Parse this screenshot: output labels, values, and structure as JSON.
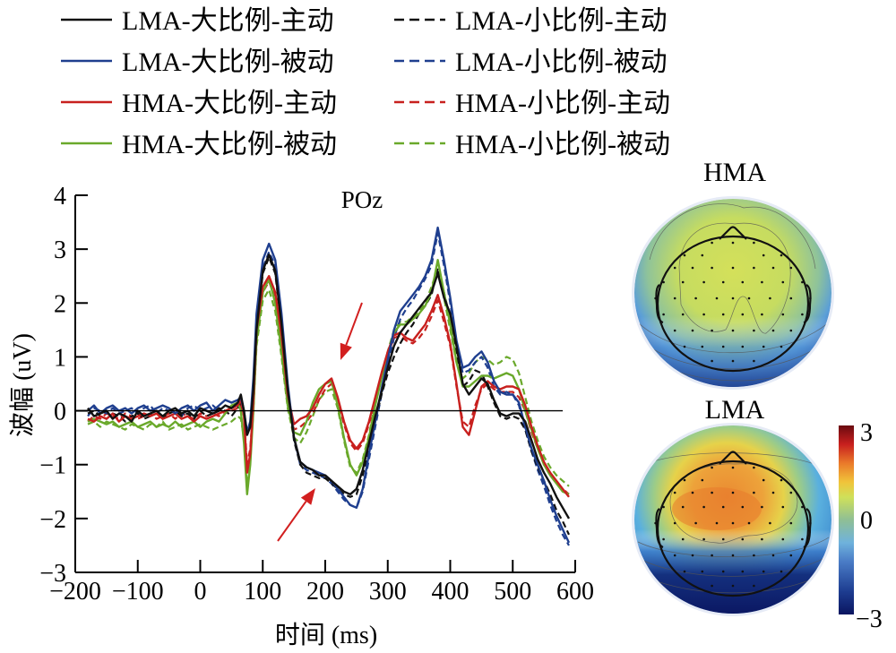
{
  "chart_data": {
    "type": "line",
    "title": "POz",
    "xlabel": "时间 (ms)",
    "ylabel": "波幅 (uV)",
    "xlim": [
      -200,
      600
    ],
    "ylim": [
      -3,
      4
    ],
    "xticks": [
      -200,
      -100,
      0,
      100,
      200,
      300,
      400,
      500,
      600
    ],
    "yticks": [
      -3,
      -2,
      -1,
      0,
      1,
      2,
      3,
      4
    ],
    "xtick_labels": [
      "−200",
      "−100",
      "0",
      "100",
      "200",
      "300",
      "400",
      "500",
      "600"
    ],
    "ytick_labels": [
      "−3",
      "−2",
      "−1",
      "0",
      "1",
      "2",
      "3",
      "4"
    ],
    "zero_line": true,
    "grid": false,
    "legend_position": "top",
    "annotations": [
      {
        "type": "arrow",
        "color": "#d21f1f",
        "points_to": {
          "x": 205,
          "y": 1.1
        },
        "note": "HMA positive deflection"
      },
      {
        "type": "arrow",
        "color": "#d21f1f",
        "points_to": {
          "x": 190,
          "y": -1.1
        },
        "note": "LMA negative deflection"
      }
    ],
    "x": [
      -180,
      -170,
      -160,
      -150,
      -140,
      -130,
      -120,
      -110,
      -100,
      -90,
      -80,
      -70,
      -60,
      -50,
      -40,
      -30,
      -20,
      -10,
      0,
      10,
      20,
      30,
      40,
      50,
      60,
      65,
      70,
      75,
      80,
      85,
      90,
      100,
      110,
      120,
      130,
      140,
      150,
      160,
      170,
      180,
      190,
      200,
      210,
      220,
      230,
      240,
      250,
      260,
      270,
      280,
      290,
      300,
      310,
      320,
      330,
      340,
      350,
      360,
      370,
      380,
      390,
      400,
      410,
      420,
      430,
      440,
      450,
      460,
      470,
      480,
      490,
      500,
      510,
      520,
      530,
      540,
      550,
      560,
      570,
      580,
      590
    ],
    "series": [
      {
        "name": "LMA-大比例-主动",
        "color": "#111111",
        "dash": "solid",
        "values": [
          0.05,
          -0.1,
          -0.05,
          0.0,
          -0.15,
          -0.05,
          -0.1,
          -0.2,
          0.0,
          -0.1,
          -0.05,
          0.0,
          -0.1,
          0.0,
          0.05,
          -0.05,
          0.0,
          -0.1,
          0.05,
          0.0,
          -0.05,
          0.0,
          0.1,
          0.05,
          0.15,
          0.3,
          0.0,
          -0.45,
          -0.3,
          0.4,
          1.5,
          2.6,
          2.9,
          2.6,
          1.6,
          0.4,
          -0.5,
          -0.95,
          -1.05,
          -1.1,
          -1.2,
          -1.2,
          -1.3,
          -1.4,
          -1.5,
          -1.55,
          -1.45,
          -1.1,
          -0.6,
          -0.1,
          0.35,
          0.8,
          1.2,
          1.45,
          1.6,
          1.75,
          1.9,
          2.05,
          2.2,
          2.55,
          2.1,
          1.8,
          1.2,
          0.5,
          0.3,
          0.45,
          0.6,
          0.5,
          0.2,
          -0.05,
          -0.1,
          -0.05,
          -0.05,
          -0.2,
          -0.55,
          -0.9,
          -1.15,
          -1.35,
          -1.6,
          -1.8,
          -2.0
        ]
      },
      {
        "name": "LMA-大比例-被动",
        "color": "#1f3f8f",
        "dash": "solid",
        "values": [
          0.0,
          0.1,
          -0.05,
          0.05,
          0.1,
          0.0,
          0.05,
          -0.05,
          0.05,
          0.1,
          0.0,
          0.05,
          0.1,
          0.05,
          -0.05,
          0.05,
          0.1,
          0.0,
          0.1,
          0.15,
          0.0,
          0.1,
          0.2,
          0.15,
          0.2,
          0.25,
          0.0,
          -0.4,
          -0.2,
          0.6,
          1.8,
          2.8,
          3.1,
          2.8,
          1.8,
          0.5,
          -0.5,
          -0.95,
          -1.05,
          -1.1,
          -1.15,
          -1.2,
          -1.3,
          -1.45,
          -1.6,
          -1.75,
          -1.8,
          -1.45,
          -0.8,
          -0.2,
          0.4,
          0.95,
          1.5,
          1.85,
          2.0,
          2.15,
          2.3,
          2.5,
          2.8,
          3.4,
          2.8,
          2.1,
          1.3,
          0.8,
          0.85,
          1.0,
          1.1,
          0.9,
          0.55,
          0.35,
          0.3,
          0.3,
          0.15,
          -0.3,
          -0.7,
          -1.0,
          -1.3,
          -1.65,
          -1.95,
          -2.2,
          -2.45
        ]
      },
      {
        "name": "HMA-大比例-主动",
        "color": "#c8201e",
        "dash": "solid",
        "values": [
          -0.15,
          -0.2,
          -0.1,
          -0.15,
          -0.05,
          -0.2,
          -0.1,
          -0.15,
          -0.1,
          -0.05,
          -0.1,
          -0.05,
          -0.15,
          -0.1,
          -0.05,
          -0.15,
          -0.1,
          -0.2,
          -0.1,
          -0.15,
          -0.1,
          -0.05,
          0.0,
          0.05,
          0.1,
          0.2,
          -0.1,
          -1.15,
          -0.8,
          0.2,
          1.5,
          2.3,
          2.5,
          2.2,
          1.4,
          0.3,
          -0.25,
          -0.15,
          -0.1,
          0.05,
          0.3,
          0.5,
          0.6,
          0.25,
          -0.2,
          -0.55,
          -0.7,
          -0.55,
          -0.2,
          0.25,
          0.7,
          1.1,
          1.4,
          1.45,
          1.35,
          1.3,
          1.45,
          1.6,
          1.85,
          2.15,
          1.75,
          1.25,
          0.5,
          -0.3,
          -0.45,
          0.0,
          0.45,
          0.55,
          0.45,
          0.4,
          0.45,
          0.45,
          0.4,
          0.1,
          -0.3,
          -0.65,
          -0.95,
          -1.15,
          -1.3,
          -1.45,
          -1.6
        ]
      },
      {
        "name": "HMA-大比例-被动",
        "color": "#6aa92b",
        "dash": "solid",
        "values": [
          -0.2,
          -0.15,
          -0.2,
          -0.25,
          -0.2,
          -0.3,
          -0.25,
          -0.2,
          -0.3,
          -0.25,
          -0.2,
          -0.3,
          -0.25,
          -0.3,
          -0.2,
          -0.3,
          -0.25,
          -0.2,
          -0.3,
          -0.2,
          -0.15,
          -0.2,
          -0.05,
          0.1,
          0.15,
          0.0,
          -0.6,
          -1.55,
          -1.0,
          0.0,
          1.3,
          2.2,
          2.45,
          2.0,
          1.1,
          0.1,
          -0.4,
          -0.45,
          -0.2,
          0.15,
          0.4,
          0.5,
          0.55,
          0.1,
          -0.5,
          -1.0,
          -1.2,
          -0.95,
          -0.5,
          0.1,
          0.6,
          1.05,
          1.45,
          1.6,
          1.6,
          1.7,
          1.8,
          1.95,
          2.2,
          2.8,
          2.2,
          1.6,
          0.9,
          0.45,
          0.45,
          0.55,
          0.65,
          0.65,
          0.6,
          0.65,
          0.7,
          0.65,
          0.4,
          0.0,
          -0.35,
          -0.7,
          -1.0,
          -1.2,
          -1.35,
          -1.5,
          -1.55
        ]
      },
      {
        "name": "LMA-小比例-主动",
        "color": "#111111",
        "dash": "dashed",
        "values": [
          -0.05,
          0.0,
          -0.1,
          -0.15,
          -0.05,
          -0.1,
          -0.2,
          -0.1,
          -0.05,
          -0.15,
          -0.1,
          -0.05,
          -0.15,
          -0.05,
          0.0,
          -0.1,
          -0.05,
          -0.15,
          0.0,
          -0.1,
          -0.05,
          0.05,
          0.0,
          -0.1,
          0.05,
          0.15,
          -0.05,
          -0.4,
          -0.3,
          0.35,
          1.45,
          2.55,
          2.85,
          2.55,
          1.55,
          0.35,
          -0.55,
          -1.0,
          -1.15,
          -1.2,
          -1.25,
          -1.25,
          -1.35,
          -1.45,
          -1.55,
          -1.6,
          -1.55,
          -1.2,
          -0.7,
          -0.2,
          0.3,
          0.7,
          1.0,
          1.25,
          1.45,
          1.6,
          1.8,
          1.95,
          2.15,
          2.65,
          2.2,
          1.7,
          1.0,
          0.45,
          0.55,
          0.75,
          0.7,
          0.45,
          0.15,
          -0.1,
          -0.15,
          -0.1,
          -0.15,
          -0.35,
          -0.75,
          -1.05,
          -1.3,
          -1.55,
          -1.85,
          -2.05,
          -2.3
        ]
      },
      {
        "name": "LMA-小比例-被动",
        "color": "#1f3f8f",
        "dash": "dashed",
        "values": [
          -0.1,
          0.05,
          0.0,
          -0.05,
          0.05,
          -0.05,
          0.0,
          0.05,
          -0.05,
          0.05,
          0.1,
          -0.05,
          0.05,
          0.0,
          0.05,
          -0.1,
          0.05,
          0.1,
          0.0,
          0.05,
          0.1,
          0.0,
          0.1,
          0.05,
          0.1,
          0.2,
          -0.05,
          -0.4,
          -0.25,
          0.5,
          1.6,
          2.65,
          2.95,
          2.7,
          1.7,
          0.45,
          -0.5,
          -1.0,
          -1.1,
          -1.15,
          -1.2,
          -1.25,
          -1.35,
          -1.5,
          -1.65,
          -1.75,
          -1.8,
          -1.5,
          -0.9,
          -0.3,
          0.3,
          0.85,
          1.35,
          1.7,
          1.9,
          2.05,
          2.25,
          2.45,
          2.7,
          3.3,
          2.7,
          2.0,
          1.2,
          0.7,
          0.75,
          0.9,
          1.0,
          0.8,
          0.45,
          0.3,
          0.35,
          0.3,
          0.1,
          -0.35,
          -0.75,
          -1.1,
          -1.4,
          -1.75,
          -2.05,
          -2.3,
          -2.5
        ]
      },
      {
        "name": "HMA-小比例-主动",
        "color": "#c8201e",
        "dash": "dashed",
        "values": [
          -0.2,
          -0.1,
          -0.15,
          -0.05,
          -0.1,
          -0.15,
          -0.05,
          -0.1,
          -0.15,
          -0.1,
          -0.05,
          -0.15,
          -0.1,
          -0.05,
          -0.15,
          -0.05,
          -0.1,
          -0.15,
          -0.05,
          -0.1,
          -0.05,
          -0.1,
          0.0,
          0.0,
          0.05,
          0.1,
          -0.1,
          -1.0,
          -0.7,
          0.1,
          1.4,
          2.2,
          2.4,
          2.1,
          1.3,
          0.25,
          -0.35,
          -0.3,
          -0.2,
          -0.05,
          0.2,
          0.4,
          0.5,
          0.2,
          -0.25,
          -0.6,
          -0.75,
          -0.6,
          -0.25,
          0.2,
          0.65,
          1.05,
          1.35,
          1.4,
          1.3,
          1.25,
          1.35,
          1.5,
          1.75,
          2.05,
          1.65,
          1.2,
          0.45,
          -0.2,
          -0.3,
          0.1,
          0.4,
          0.5,
          0.4,
          0.35,
          0.35,
          0.35,
          0.25,
          0.0,
          -0.4,
          -0.7,
          -1.0,
          -1.2,
          -1.35,
          -1.45,
          -1.55
        ]
      },
      {
        "name": "HMA-小比例-被动",
        "color": "#6aa92b",
        "dash": "dashed",
        "values": [
          -0.25,
          -0.2,
          -0.3,
          -0.2,
          -0.25,
          -0.3,
          -0.35,
          -0.25,
          -0.3,
          -0.35,
          -0.25,
          -0.3,
          -0.2,
          -0.35,
          -0.3,
          -0.25,
          -0.35,
          -0.3,
          -0.25,
          -0.3,
          -0.35,
          -0.3,
          -0.25,
          -0.2,
          -0.1,
          -0.15,
          -0.5,
          -1.35,
          -0.9,
          0.0,
          1.2,
          2.05,
          2.25,
          1.85,
          1.0,
          0.05,
          -0.5,
          -0.6,
          -0.4,
          -0.1,
          0.2,
          0.35,
          0.4,
          0.05,
          -0.55,
          -1.05,
          -1.15,
          -0.9,
          -0.45,
          0.15,
          0.7,
          1.1,
          1.5,
          1.65,
          1.65,
          1.75,
          1.85,
          2.0,
          2.3,
          2.65,
          2.1,
          1.5,
          0.9,
          0.6,
          0.7,
          0.9,
          1.0,
          0.95,
          0.85,
          0.9,
          1.0,
          0.95,
          0.7,
          0.25,
          -0.2,
          -0.55,
          -0.85,
          -1.05,
          -1.2,
          -1.3,
          -1.4
        ]
      }
    ]
  },
  "legend": {
    "items": [
      {
        "label": "LMA-大比例-主动",
        "color": "#111111",
        "dash": "solid"
      },
      {
        "label": "LMA-大比例-被动",
        "color": "#1f3f8f",
        "dash": "solid"
      },
      {
        "label": "HMA-大比例-主动",
        "color": "#c8201e",
        "dash": "solid"
      },
      {
        "label": "HMA-大比例-被动",
        "color": "#6aa92b",
        "dash": "solid"
      },
      {
        "label": "LMA-小比例-主动",
        "color": "#111111",
        "dash": "dashed"
      },
      {
        "label": "LMA-小比例-被动",
        "color": "#1f3f8f",
        "dash": "dashed"
      },
      {
        "label": "HMA-小比例-主动",
        "color": "#c8201e",
        "dash": "dashed"
      },
      {
        "label": "HMA-小比例-被动",
        "color": "#6aa92b",
        "dash": "dashed"
      }
    ]
  },
  "topomaps": [
    {
      "title": "HMA",
      "pattern": "mild positive (~0.5 uV) over fronto-central-parietal scalp, negative toward occipital edge"
    },
    {
      "title": "LMA",
      "pattern": "strong positive (~1.5–2 uV) over frontal/central scalp, strong negative (~-3 uV) over occipital region"
    }
  ],
  "colorbar": {
    "min_label": "−3",
    "mid_label": "0",
    "max_label": "3",
    "range": [
      -3,
      3
    ],
    "colormap": "jet-like (dark blue → cyan → green → yellow → orange → dark red)"
  },
  "colors": {
    "arrow": "#d21f1f",
    "axis": "#000000"
  }
}
